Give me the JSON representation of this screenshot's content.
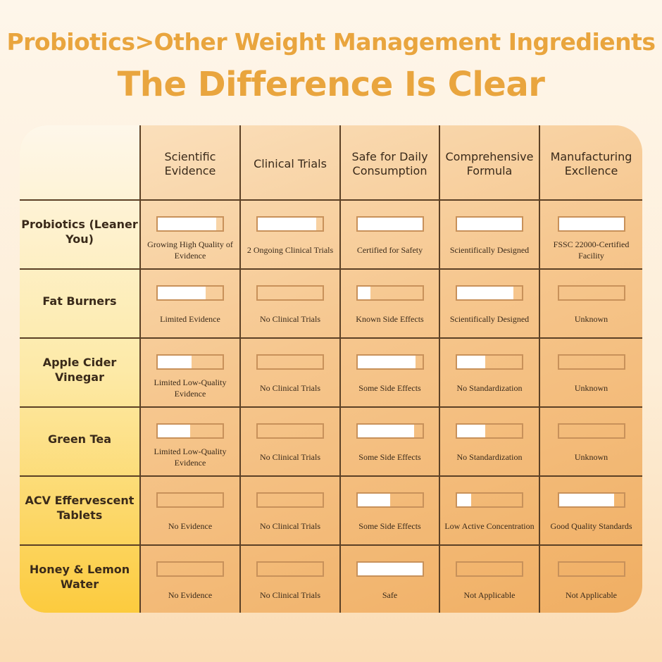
{
  "title_line1": "Probiotics>Other Weight Management Ingredients",
  "title_line2": "The Difference Is Clear",
  "columns": [
    "Scientific Evidence",
    "Clinical Trials",
    "Safe for Daily Consumption",
    "Comprehensive Formula",
    "Manufacturing Excllence"
  ],
  "rows": [
    {
      "label": "Probiotics (Leaner You)",
      "cells": [
        {
          "fill": 0.9,
          "text": "Growing High Quality of Evidence"
        },
        {
          "fill": 0.9,
          "text": "2 Ongoing Clinical Trials"
        },
        {
          "fill": 1.0,
          "text": "Certified for Safety"
        },
        {
          "fill": 1.0,
          "text": "Scientifically Designed"
        },
        {
          "fill": 1.0,
          "text": "FSSC 22000-Certified Facility"
        }
      ]
    },
    {
      "label": "Fat Burners",
      "cells": [
        {
          "fill": 0.74,
          "text": "Limited Evidence"
        },
        {
          "fill": 0,
          "text": "No Clinical Trials"
        },
        {
          "fill": 0.2,
          "text": "Known Side Effects"
        },
        {
          "fill": 0.87,
          "text": "Scientifically Designed"
        },
        {
          "fill": 0,
          "text": "Unknown"
        }
      ]
    },
    {
      "label": "Apple Cider Vinegar",
      "cells": [
        {
          "fill": 0.52,
          "text": "Limited Low-Quality Evidence"
        },
        {
          "fill": 0,
          "text": "No Clinical Trials"
        },
        {
          "fill": 0.9,
          "text": "Some Side Effects"
        },
        {
          "fill": 0.44,
          "text": "No Standardization"
        },
        {
          "fill": 0,
          "text": "Unknown"
        }
      ]
    },
    {
      "label": "Green Tea",
      "cells": [
        {
          "fill": 0.5,
          "text": "Limited Low-Quality Evidence"
        },
        {
          "fill": 0,
          "text": "No Clinical Trials"
        },
        {
          "fill": 0.87,
          "text": "Some Side Effects"
        },
        {
          "fill": 0.44,
          "text": "No Standardization"
        },
        {
          "fill": 0,
          "text": "Unknown"
        }
      ]
    },
    {
      "label": "ACV Effervescent Tablets",
      "cells": [
        {
          "fill": 0,
          "text": "No Evidence"
        },
        {
          "fill": 0,
          "text": "No Clinical Trials"
        },
        {
          "fill": 0.5,
          "text": "Some Side Effects"
        },
        {
          "fill": 0.22,
          "text": "Low Active Concentration"
        },
        {
          "fill": 0.85,
          "text": "Good Quality Standards"
        }
      ]
    },
    {
      "label": "Honey & Lemon Water",
      "cells": [
        {
          "fill": 0,
          "text": "No Evidence"
        },
        {
          "fill": 0,
          "text": "No Clinical Trials"
        },
        {
          "fill": 1.0,
          "text": "Safe"
        },
        {
          "fill": 0,
          "text": "Not Applicable"
        },
        {
          "fill": 0,
          "text": "Not Applicable"
        }
      ]
    }
  ],
  "colors": {
    "title": "#e9a53e",
    "cell_bg": "#f6c78f",
    "label_col": "#fccb3e",
    "bar_fill": "#ffffff",
    "bar_border": "#c8915a"
  }
}
